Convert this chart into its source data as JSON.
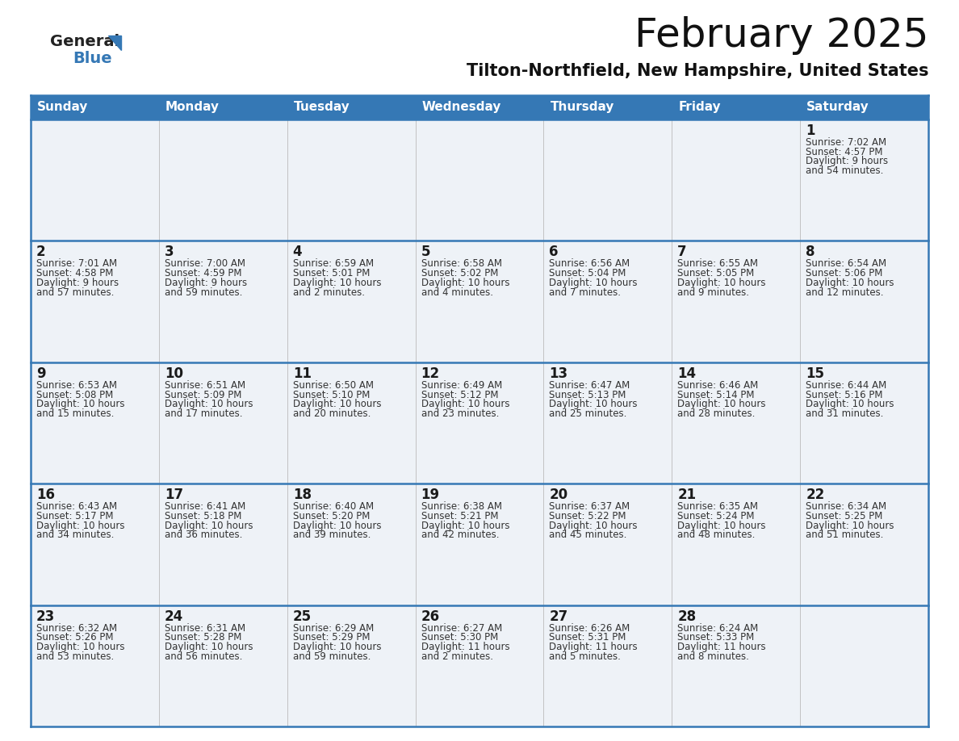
{
  "title": "February 2025",
  "subtitle": "Tilton-Northfield, New Hampshire, United States",
  "header_color": "#3578b5",
  "header_text_color": "#ffffff",
  "cell_bg_light": "#eef2f7",
  "cell_bg_white": "#ffffff",
  "day_number_color": "#1a1a1a",
  "text_color": "#333333",
  "line_color": "#3578b5",
  "days_of_week": [
    "Sunday",
    "Monday",
    "Tuesday",
    "Wednesday",
    "Thursday",
    "Friday",
    "Saturday"
  ],
  "calendar_data": [
    [
      null,
      null,
      null,
      null,
      null,
      null,
      {
        "day": "1",
        "sunrise": "Sunrise: 7:02 AM",
        "sunset": "Sunset: 4:57 PM",
        "daylight1": "Daylight: 9 hours",
        "daylight2": "and 54 minutes."
      }
    ],
    [
      {
        "day": "2",
        "sunrise": "Sunrise: 7:01 AM",
        "sunset": "Sunset: 4:58 PM",
        "daylight1": "Daylight: 9 hours",
        "daylight2": "and 57 minutes."
      },
      {
        "day": "3",
        "sunrise": "Sunrise: 7:00 AM",
        "sunset": "Sunset: 4:59 PM",
        "daylight1": "Daylight: 9 hours",
        "daylight2": "and 59 minutes."
      },
      {
        "day": "4",
        "sunrise": "Sunrise: 6:59 AM",
        "sunset": "Sunset: 5:01 PM",
        "daylight1": "Daylight: 10 hours",
        "daylight2": "and 2 minutes."
      },
      {
        "day": "5",
        "sunrise": "Sunrise: 6:58 AM",
        "sunset": "Sunset: 5:02 PM",
        "daylight1": "Daylight: 10 hours",
        "daylight2": "and 4 minutes."
      },
      {
        "day": "6",
        "sunrise": "Sunrise: 6:56 AM",
        "sunset": "Sunset: 5:04 PM",
        "daylight1": "Daylight: 10 hours",
        "daylight2": "and 7 minutes."
      },
      {
        "day": "7",
        "sunrise": "Sunrise: 6:55 AM",
        "sunset": "Sunset: 5:05 PM",
        "daylight1": "Daylight: 10 hours",
        "daylight2": "and 9 minutes."
      },
      {
        "day": "8",
        "sunrise": "Sunrise: 6:54 AM",
        "sunset": "Sunset: 5:06 PM",
        "daylight1": "Daylight: 10 hours",
        "daylight2": "and 12 minutes."
      }
    ],
    [
      {
        "day": "9",
        "sunrise": "Sunrise: 6:53 AM",
        "sunset": "Sunset: 5:08 PM",
        "daylight1": "Daylight: 10 hours",
        "daylight2": "and 15 minutes."
      },
      {
        "day": "10",
        "sunrise": "Sunrise: 6:51 AM",
        "sunset": "Sunset: 5:09 PM",
        "daylight1": "Daylight: 10 hours",
        "daylight2": "and 17 minutes."
      },
      {
        "day": "11",
        "sunrise": "Sunrise: 6:50 AM",
        "sunset": "Sunset: 5:10 PM",
        "daylight1": "Daylight: 10 hours",
        "daylight2": "and 20 minutes."
      },
      {
        "day": "12",
        "sunrise": "Sunrise: 6:49 AM",
        "sunset": "Sunset: 5:12 PM",
        "daylight1": "Daylight: 10 hours",
        "daylight2": "and 23 minutes."
      },
      {
        "day": "13",
        "sunrise": "Sunrise: 6:47 AM",
        "sunset": "Sunset: 5:13 PM",
        "daylight1": "Daylight: 10 hours",
        "daylight2": "and 25 minutes."
      },
      {
        "day": "14",
        "sunrise": "Sunrise: 6:46 AM",
        "sunset": "Sunset: 5:14 PM",
        "daylight1": "Daylight: 10 hours",
        "daylight2": "and 28 minutes."
      },
      {
        "day": "15",
        "sunrise": "Sunrise: 6:44 AM",
        "sunset": "Sunset: 5:16 PM",
        "daylight1": "Daylight: 10 hours",
        "daylight2": "and 31 minutes."
      }
    ],
    [
      {
        "day": "16",
        "sunrise": "Sunrise: 6:43 AM",
        "sunset": "Sunset: 5:17 PM",
        "daylight1": "Daylight: 10 hours",
        "daylight2": "and 34 minutes."
      },
      {
        "day": "17",
        "sunrise": "Sunrise: 6:41 AM",
        "sunset": "Sunset: 5:18 PM",
        "daylight1": "Daylight: 10 hours",
        "daylight2": "and 36 minutes."
      },
      {
        "day": "18",
        "sunrise": "Sunrise: 6:40 AM",
        "sunset": "Sunset: 5:20 PM",
        "daylight1": "Daylight: 10 hours",
        "daylight2": "and 39 minutes."
      },
      {
        "day": "19",
        "sunrise": "Sunrise: 6:38 AM",
        "sunset": "Sunset: 5:21 PM",
        "daylight1": "Daylight: 10 hours",
        "daylight2": "and 42 minutes."
      },
      {
        "day": "20",
        "sunrise": "Sunrise: 6:37 AM",
        "sunset": "Sunset: 5:22 PM",
        "daylight1": "Daylight: 10 hours",
        "daylight2": "and 45 minutes."
      },
      {
        "day": "21",
        "sunrise": "Sunrise: 6:35 AM",
        "sunset": "Sunset: 5:24 PM",
        "daylight1": "Daylight: 10 hours",
        "daylight2": "and 48 minutes."
      },
      {
        "day": "22",
        "sunrise": "Sunrise: 6:34 AM",
        "sunset": "Sunset: 5:25 PM",
        "daylight1": "Daylight: 10 hours",
        "daylight2": "and 51 minutes."
      }
    ],
    [
      {
        "day": "23",
        "sunrise": "Sunrise: 6:32 AM",
        "sunset": "Sunset: 5:26 PM",
        "daylight1": "Daylight: 10 hours",
        "daylight2": "and 53 minutes."
      },
      {
        "day": "24",
        "sunrise": "Sunrise: 6:31 AM",
        "sunset": "Sunset: 5:28 PM",
        "daylight1": "Daylight: 10 hours",
        "daylight2": "and 56 minutes."
      },
      {
        "day": "25",
        "sunrise": "Sunrise: 6:29 AM",
        "sunset": "Sunset: 5:29 PM",
        "daylight1": "Daylight: 10 hours",
        "daylight2": "and 59 minutes."
      },
      {
        "day": "26",
        "sunrise": "Sunrise: 6:27 AM",
        "sunset": "Sunset: 5:30 PM",
        "daylight1": "Daylight: 11 hours",
        "daylight2": "and 2 minutes."
      },
      {
        "day": "27",
        "sunrise": "Sunrise: 6:26 AM",
        "sunset": "Sunset: 5:31 PM",
        "daylight1": "Daylight: 11 hours",
        "daylight2": "and 5 minutes."
      },
      {
        "day": "28",
        "sunrise": "Sunrise: 6:24 AM",
        "sunset": "Sunset: 5:33 PM",
        "daylight1": "Daylight: 11 hours",
        "daylight2": "and 8 minutes."
      },
      null
    ]
  ],
  "title_fontsize": 36,
  "subtitle_fontsize": 15,
  "header_fontsize": 11,
  "day_num_fontsize": 12,
  "cell_text_fontsize": 8.5
}
